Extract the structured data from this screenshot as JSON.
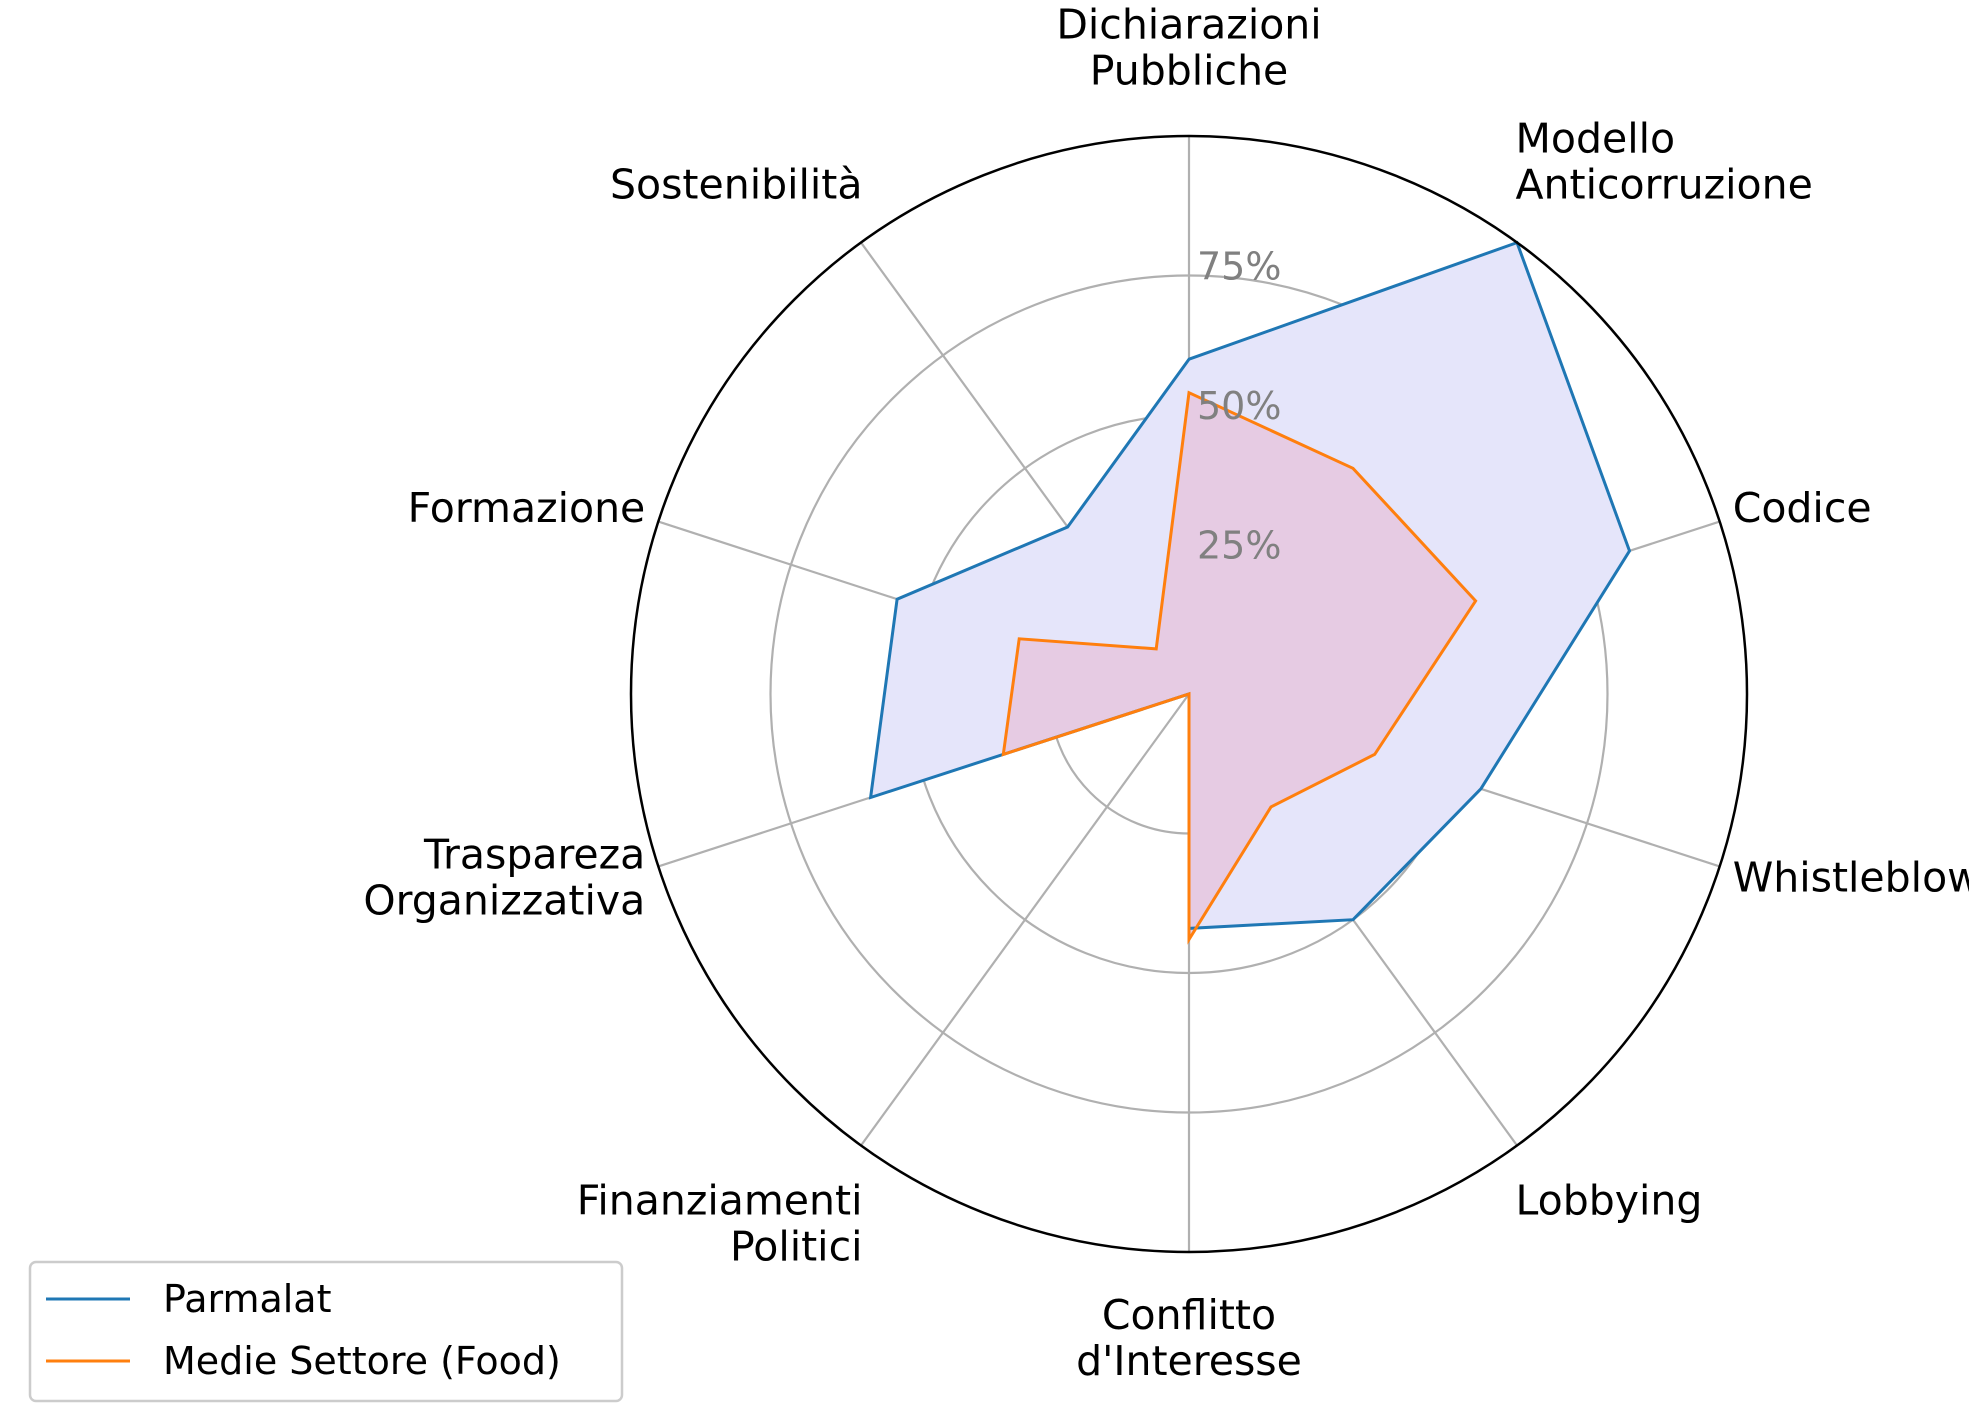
{
  "chart_data": {
    "type": "radar",
    "categories": [
      "Dichiarazioni\nPubbliche",
      "Modello\nAnticorruzione",
      "Codice",
      "Whistleblowing",
      "Lobbying",
      "Conflitto\nd'Interesse",
      "Finanziamenti\nPolitici",
      "Traspareza\nOrganizzativa",
      "Formazione",
      "Sostenibilità"
    ],
    "series": [
      {
        "name": "Parmalat",
        "values": [
          60,
          100,
          83,
          55,
          50,
          42,
          0,
          60,
          55,
          37
        ],
        "color": "#1f77b4",
        "fill": "#e5e5fa"
      },
      {
        "name": "Medie Settore (Food)",
        "values": [
          54,
          50,
          54,
          35,
          25,
          44,
          0,
          35,
          32,
          10
        ],
        "color": "#ff7f0e",
        "fill": "#e6cbe3"
      }
    ],
    "radial_ticks": [
      "25%",
      "50%",
      "75%"
    ],
    "radial_tick_values": [
      25,
      50,
      75
    ],
    "rlim": [
      0,
      100
    ],
    "grid": true,
    "legend_position": "lower-left"
  }
}
